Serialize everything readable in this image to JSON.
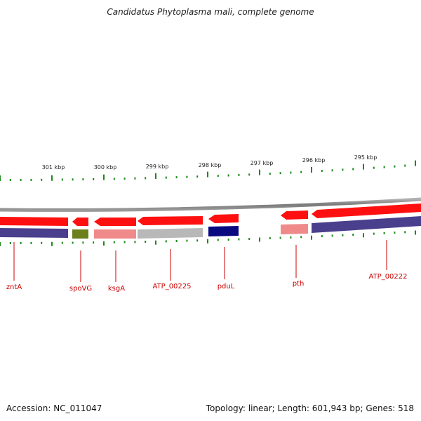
{
  "title": "Candidatus Phytoplasma mali, complete genome",
  "footer": {
    "accession_label": "Accession: NC_011047",
    "stats_label": "Topology: linear; Length: 601,943 bp; Genes: 518"
  },
  "scale_labels": [
    "301 kbp",
    "300 kbp",
    "299 kbp",
    "298 kbp",
    "297 kbp",
    "296 kbp",
    "295 kbp"
  ],
  "gene_labels": [
    "zntA",
    "spoVG",
    "ksgA",
    "ATP_00225",
    "pduL",
    "pth",
    "ATP_00222"
  ],
  "colors": {
    "backbone": "#8a8a8a",
    "gene_arrow": "#ff1010",
    "tick": "#1a8a1a",
    "label": "#cc0000",
    "cog_zntA": "#4a3f8c",
    "cog_spoVG": "#6b7f1a",
    "cog_ksgA": "#f08a8a",
    "cog_ATP_00225": "#b8b8b8",
    "cog_pduL": "#0a0a80",
    "cog_pth": "#f08a8a",
    "cog_ATP_00222": "#4a3f8c"
  }
}
